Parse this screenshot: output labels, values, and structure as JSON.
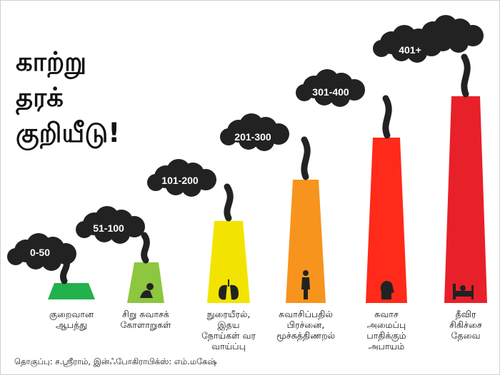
{
  "title": {
    "line1": "காற்று",
    "line2": "தரக்",
    "line3": "குறியீடு!"
  },
  "levels": [
    {
      "range": "0-50",
      "color": "#22b14c",
      "icon": "blank-icon",
      "caption": "குறைவான\nஆபத்து"
    },
    {
      "range": "51-100",
      "color": "#8dc63f",
      "icon": "person-crouching-icon",
      "caption": "சிறு சுவாசக்\nகோளாறுகள்"
    },
    {
      "range": "101-200",
      "color": "#f2e400",
      "icon": "lungs-icon",
      "caption": "நுரையீரல்,\nஇதய\nநோய்கள் வர\nவாய்ப்பு"
    },
    {
      "range": "201-300",
      "color": "#f7941d",
      "icon": "human-body-icon",
      "caption": "சுவாசிப்பதில்\nபிரச்னை,\nமூச்சுத்திணறல்"
    },
    {
      "range": "301-400",
      "color": "#ff2a1a",
      "icon": "head-profile-icon",
      "caption": "சுவாச\nஅமைப்பு\nபாதிக்கும்\nஅபாயம்"
    },
    {
      "range": "401+",
      "color": "#e8202a",
      "icon": "hospital-bed-icon",
      "caption": "தீவிர\nசிகிச்சை\nதேவை"
    }
  ],
  "credit": "தொகுப்பு: ச.ஸ்ரீராம், இன்ஃபோகிராபிக்ஸ்: எம்.மகேஷ்"
}
